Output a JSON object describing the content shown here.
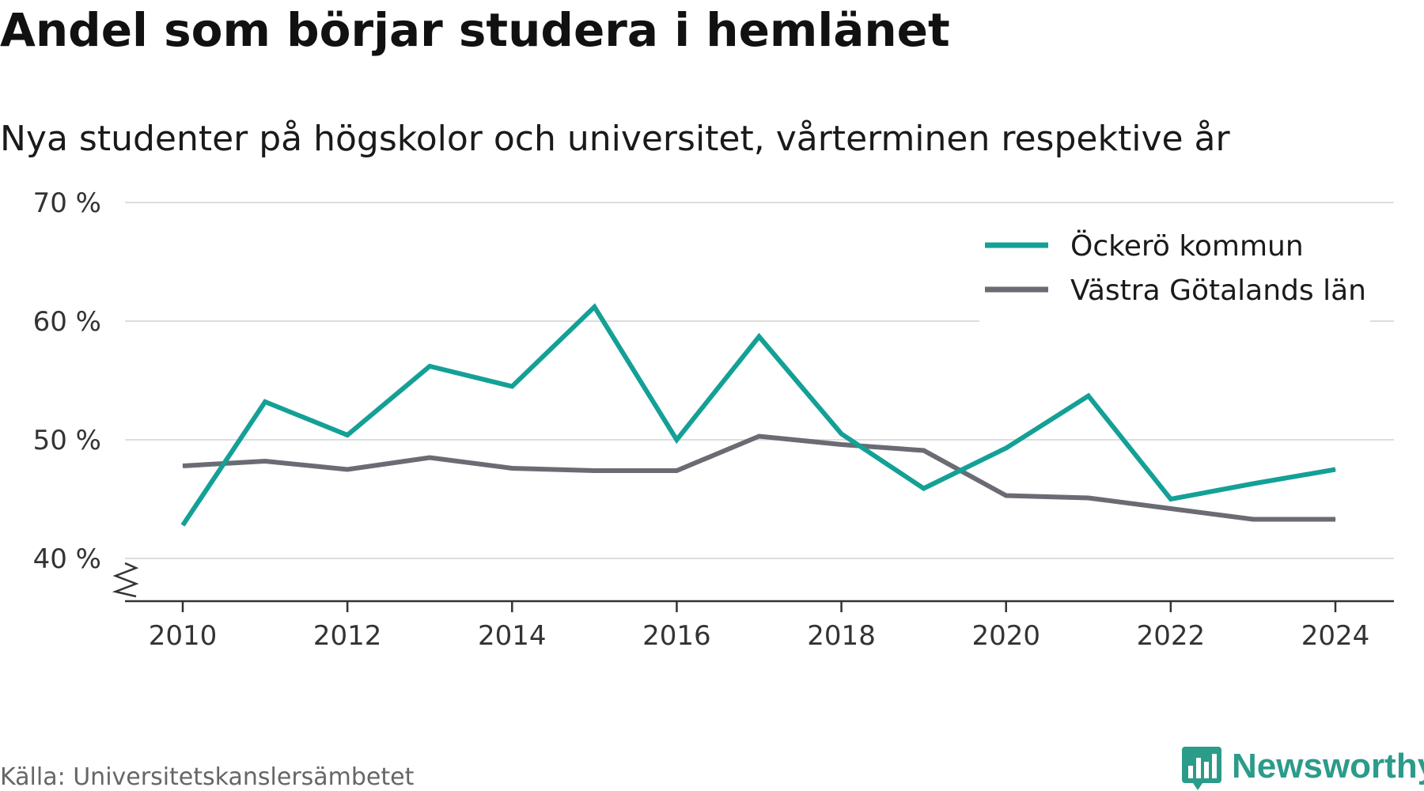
{
  "title": "Andel som börjar studera i hemlänet",
  "subtitle": "Nya studenter på högskolor och universitet, vårterminen respektive år",
  "source": "Källa: Universitetskanslersämbetet",
  "brand": {
    "name": "Newsworthy",
    "icon": "newsworthy-logo-icon",
    "color": "#2b9b8a"
  },
  "chart_data": {
    "type": "line",
    "x": [
      2010,
      2011,
      2012,
      2013,
      2014,
      2015,
      2016,
      2017,
      2018,
      2019,
      2020,
      2021,
      2022,
      2023,
      2024
    ],
    "x_ticks": [
      "2010",
      "2012",
      "2014",
      "2016",
      "2018",
      "2020",
      "2022",
      "2024"
    ],
    "y_ticks": [
      "70 %",
      "60 %",
      "50 %",
      "40 %"
    ],
    "ylim": [
      40,
      70
    ],
    "y_axis_break": true,
    "grid": true,
    "legend_position": "top-right",
    "series": [
      {
        "name": "Öckerö kommun",
        "color": "#14a096",
        "values": [
          42.8,
          53.2,
          50.4,
          56.2,
          54.5,
          61.2,
          50.0,
          58.7,
          50.5,
          45.9,
          49.3,
          53.7,
          45.0,
          46.3,
          47.5
        ]
      },
      {
        "name": "Västra Götalands län",
        "color": "#6b6b73",
        "values": [
          47.8,
          48.2,
          47.5,
          48.5,
          47.6,
          47.4,
          47.4,
          50.3,
          49.6,
          49.1,
          45.3,
          45.1,
          44.2,
          43.3,
          43.3
        ]
      }
    ]
  }
}
